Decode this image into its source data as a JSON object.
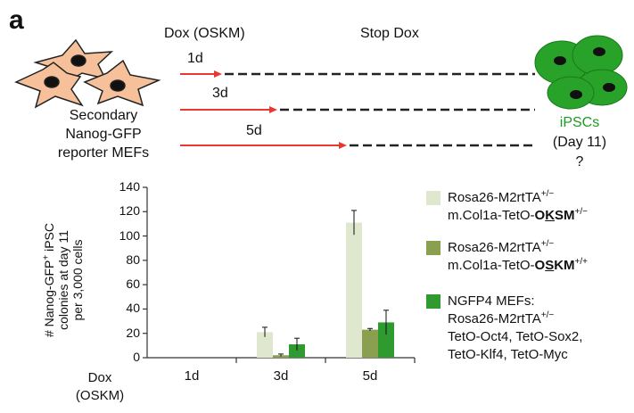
{
  "panel_letter": "a",
  "schematic": {
    "cells_label": [
      "Secondary",
      "Nanog-GFP",
      "reporter MEFs"
    ],
    "dox_label": "Dox (OSKM)",
    "stop_label": "Stop Dox",
    "durations": [
      "1d",
      "3d",
      "5d"
    ],
    "ipsc_label": "iPSCs",
    "ipsc_day": "(Day 11)",
    "question": "?"
  },
  "chart_data": {
    "type": "bar",
    "ylabel_lines": [
      "# Nanog-GFP",
      "colonies at day 11",
      "per 3,000 cells"
    ],
    "ylabel_sup": "+",
    "ylabel_suffix": " iPSC",
    "x_title_lines": [
      "Dox",
      "(OSKM)"
    ],
    "categories": [
      "1d",
      "3d",
      "5d"
    ],
    "ylim": [
      0,
      140
    ],
    "yticks": [
      "0",
      "20",
      "40",
      "60",
      "80",
      "100",
      "120",
      "140"
    ],
    "series": [
      {
        "values": [
          0,
          21,
          111
        ],
        "errors": [
          0,
          4,
          10
        ],
        "color": "#dfe8cf"
      },
      {
        "values": [
          0,
          2,
          23
        ],
        "errors": [
          0,
          1,
          1
        ],
        "color": "#8aa050"
      },
      {
        "values": [
          0,
          11,
          29
        ],
        "errors": [
          0,
          5,
          10
        ],
        "color": "#2f9a2f"
      }
    ]
  },
  "legend": [
    {
      "lines": [
        "Rosa26-M2rtTA",
        "m.Col1a-TetO-"
      ],
      "sup1": "+/−",
      "bold_pre": "O",
      "bold_ul": "K",
      "bold_post": "SM",
      "sup2": "+/−",
      "color": "#dfe8cf"
    },
    {
      "lines": [
        "Rosa26-M2rtTA",
        "m.Col1a-TetO-"
      ],
      "sup1": "+/−",
      "bold_pre": "O",
      "bold_ul": "S",
      "bold_post": "KM",
      "sup2": "+/+",
      "color": "#8aa050"
    },
    {
      "lines": [
        "NGFP4 MEFs:",
        "Rosa26-M2rtTA",
        "TetO-Oct4, TetO-Sox2,",
        "TetO-Klf4, TetO-Myc"
      ],
      "sup1": "+/−",
      "color": "#2f9a2f"
    }
  ],
  "colors": {
    "arrow": "#e8392f",
    "cell_fill": "#f6c09a",
    "ipsc_green": "#28a228",
    "ipsc_text": "#1f9a1f"
  }
}
